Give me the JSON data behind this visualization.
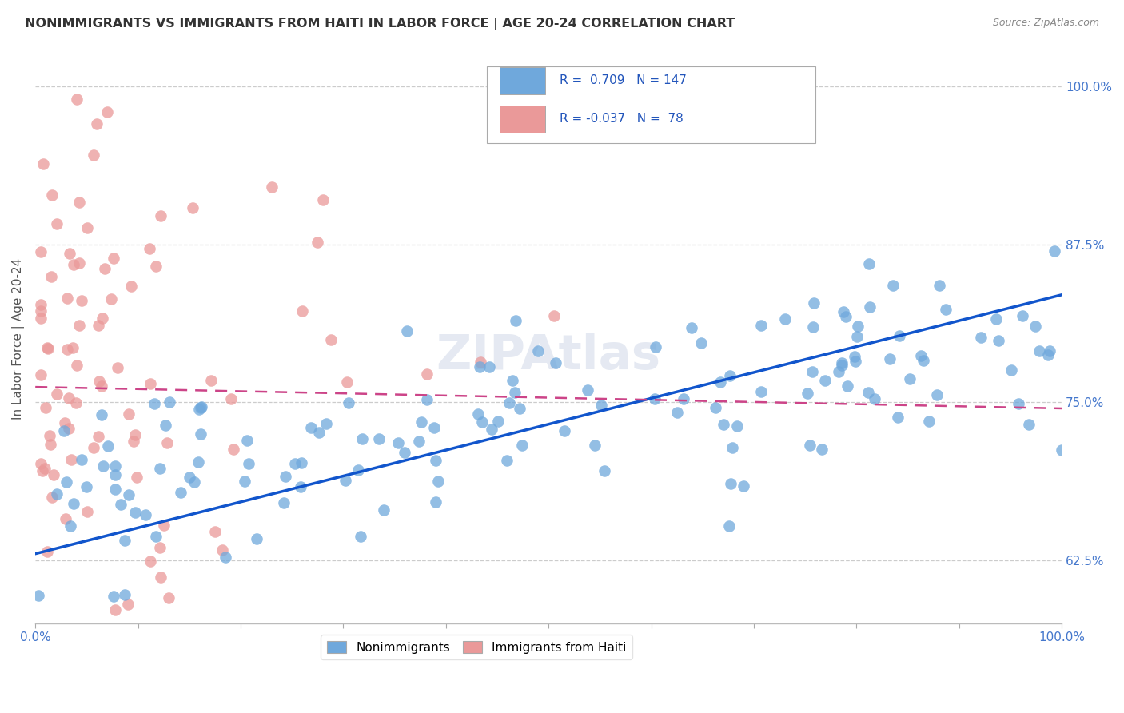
{
  "title": "NONIMMIGRANTS VS IMMIGRANTS FROM HAITI IN LABOR FORCE | AGE 20-24 CORRELATION CHART",
  "source": "Source: ZipAtlas.com",
  "ylabel": "In Labor Force | Age 20-24",
  "legend_label1": "Nonimmigrants",
  "legend_label2": "Immigrants from Haiti",
  "r1": 0.709,
  "n1": 147,
  "r2": -0.037,
  "n2": 78,
  "blue_color": "#6fa8dc",
  "pink_color": "#ea9999",
  "blue_line_color": "#1155cc",
  "pink_line_color": "#cc4488",
  "watermark": "ZIPAtlas",
  "background_color": "#ffffff",
  "xlim": [
    0.0,
    1.0
  ],
  "ylim": [
    0.575,
    1.025
  ],
  "y_ticks": [
    0.625,
    0.75,
    0.875,
    1.0
  ],
  "y_tick_labels": [
    "62.5%",
    "75.0%",
    "87.5%",
    "100.0%"
  ],
  "x_ticks": [
    0.0,
    0.1,
    0.2,
    0.3,
    0.4,
    0.5,
    0.6,
    0.7,
    0.8,
    0.9,
    1.0
  ],
  "blue_line_x0": 0.0,
  "blue_line_y0": 0.63,
  "blue_line_x1": 1.0,
  "blue_line_y1": 0.835,
  "pink_line_x0": 0.0,
  "pink_line_y0": 0.762,
  "pink_line_x1": 1.0,
  "pink_line_y1": 0.745
}
